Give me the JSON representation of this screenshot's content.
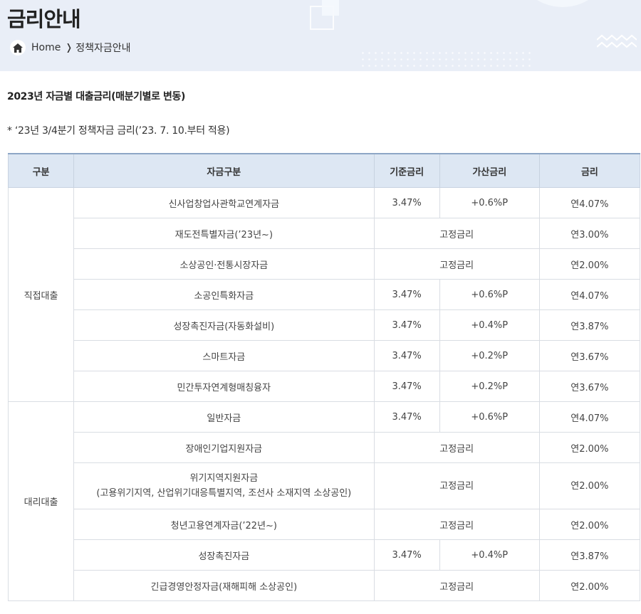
{
  "header": {
    "title": "금리안내",
    "breadcrumb": {
      "home": "Home",
      "current": "정책자금안내"
    }
  },
  "section_title": "2023년 자금별 대출금리(매분기별로 변동)",
  "note": "* ‘23년 3/4분기 정책자금 금리(’23. 7. 10.부터 적용)",
  "table": {
    "headers": [
      "구분",
      "자금구분",
      "기준금리",
      "가산금리",
      "금리"
    ],
    "groups": [
      {
        "name": "직접대출",
        "rows": [
          {
            "fund": "신사업창업사관학교연계자금",
            "base": "3.47%",
            "add": "+0.6%P",
            "rate": "연4.07%"
          },
          {
            "fund": "재도전특별자금(’23년~)",
            "fixed": "고정금리",
            "rate": "연3.00%"
          },
          {
            "fund": "소상공인·전통시장자금",
            "fixed": "고정금리",
            "rate": "연2.00%"
          },
          {
            "fund": "소공인특화자금",
            "base": "3.47%",
            "add": "+0.6%P",
            "rate": "연4.07%"
          },
          {
            "fund": "성장촉진자금(자동화설비)",
            "base": "3.47%",
            "add": "+0.4%P",
            "rate": "연3.87%"
          },
          {
            "fund": "스마트자금",
            "base": "3.47%",
            "add": "+0.2%P",
            "rate": "연3.67%"
          },
          {
            "fund": "민간투자연계형매칭융자",
            "base": "3.47%",
            "add": "+0.2%P",
            "rate": "연3.67%"
          }
        ]
      },
      {
        "name": "대리대출",
        "rows": [
          {
            "fund": "일반자금",
            "base": "3.47%",
            "add": "+0.6%P",
            "rate": "연4.07%"
          },
          {
            "fund": "장애인기업지원자금",
            "fixed": "고정금리",
            "rate": "연2.00%"
          },
          {
            "fund": "위기지역지원자금",
            "fund_sub": "(고용위기지역, 산업위기대응특별지역, 조선사 소재지역 소상공인)",
            "fixed": "고정금리",
            "rate": "연2.00%"
          },
          {
            "fund": "청년고용연계자금(’22년~)",
            "fixed": "고정금리",
            "rate": "연2.00%"
          },
          {
            "fund": "성장촉진자금",
            "base": "3.47%",
            "add": "+0.4%P",
            "rate": "연3.87%"
          },
          {
            "fund": "긴급경영안정자금(재해피해 소상공인)",
            "fixed": "고정금리",
            "rate": "연2.00%"
          }
        ]
      }
    ]
  }
}
